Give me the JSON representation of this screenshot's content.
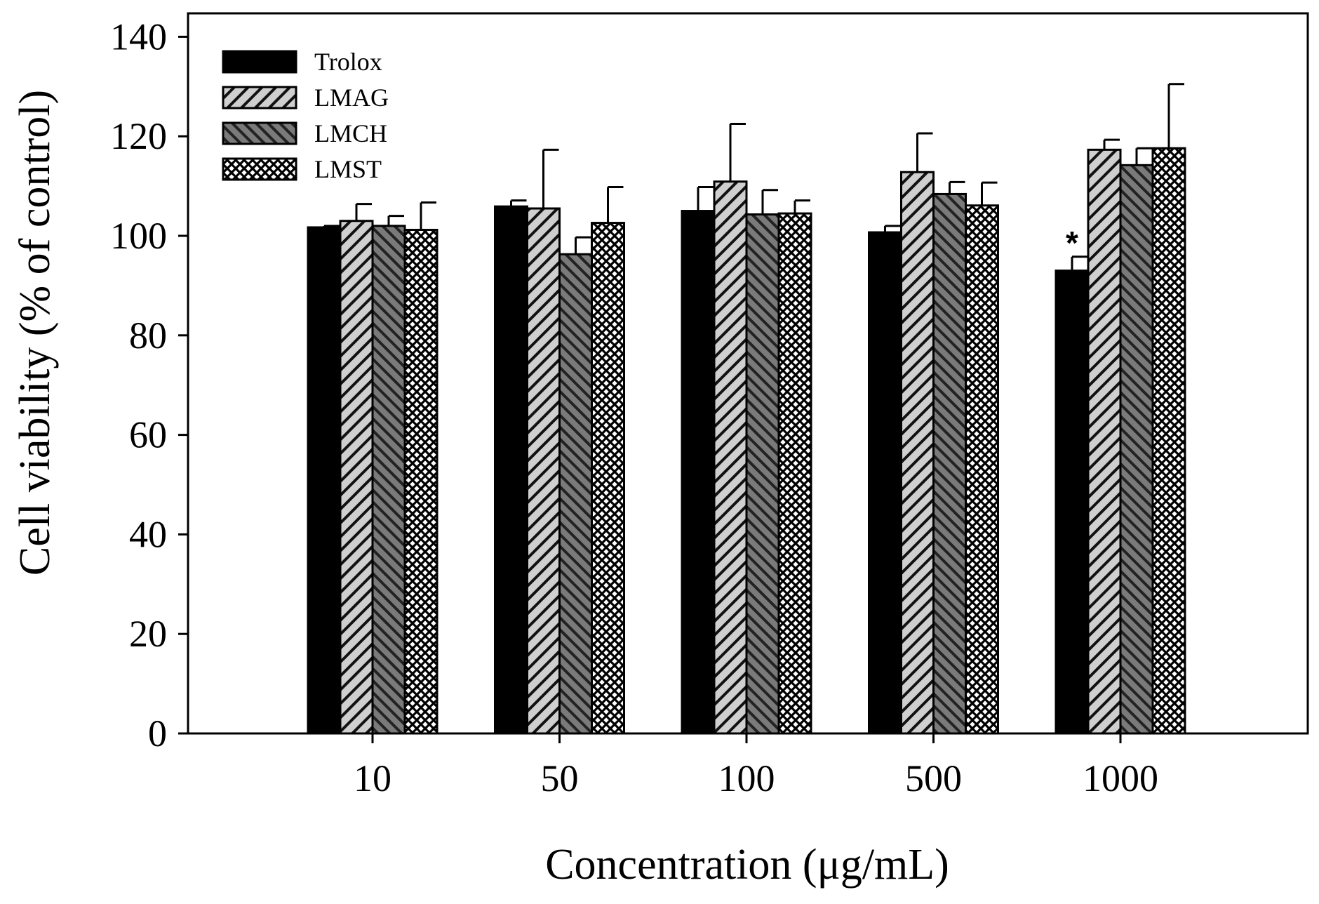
{
  "chart_data": {
    "type": "bar",
    "title": "",
    "xlabel": "Concentration (μg/mL)",
    "ylabel": "Cell viability (% of control)",
    "categories": [
      "10",
      "50",
      "100",
      "500",
      "1000"
    ],
    "ylim": [
      0,
      140
    ],
    "yticks": [
      0,
      20,
      40,
      60,
      80,
      100,
      120,
      140
    ],
    "grid": false,
    "legend_position": "top-left",
    "series": [
      {
        "name": "Trolox",
        "pattern": "solid-black",
        "values": [
          101.7,
          105.9,
          105.0,
          100.7,
          93.0
        ],
        "errors": [
          0.3,
          1.2,
          4.8,
          1.3,
          2.8
        ]
      },
      {
        "name": "LMAG",
        "pattern": "light-diagonal-hatch",
        "values": [
          103.0,
          105.5,
          110.9,
          112.8,
          117.3
        ],
        "errors": [
          3.4,
          11.8,
          11.6,
          7.8,
          2.0
        ]
      },
      {
        "name": "LMCH",
        "pattern": "dark-diagonal-hatch",
        "values": [
          102.0,
          96.3,
          104.3,
          108.4,
          114.2
        ],
        "errors": [
          2.0,
          3.4,
          4.9,
          2.4,
          3.4
        ]
      },
      {
        "name": "LMST",
        "pattern": "crosshatch",
        "values": [
          101.2,
          102.6,
          104.5,
          106.1,
          117.6
        ],
        "errors": [
          5.5,
          7.2,
          2.6,
          4.6,
          12.9
        ]
      }
    ],
    "annotations": [
      {
        "text": "*",
        "category": "1000",
        "series": "Trolox"
      }
    ]
  }
}
